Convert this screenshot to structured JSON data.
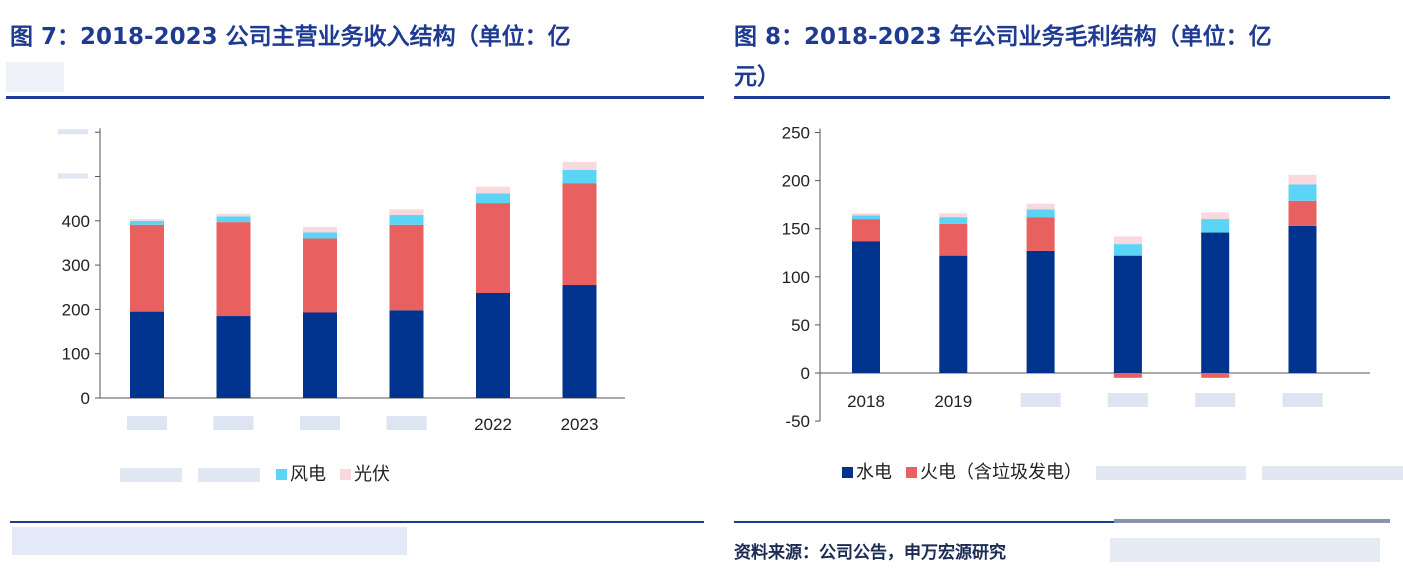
{
  "left": {
    "title": "图 7：2018-2023 公司主营业务收入结构（单位：亿",
    "chart_data": {
      "type": "bar",
      "stacked": true,
      "categories": [
        "",
        "",
        "",
        "",
        "2022",
        "2023"
      ],
      "ylim": [
        0,
        600
      ],
      "yticks": [
        0,
        100,
        200,
        300,
        400
      ],
      "series": [
        {
          "name": "",
          "color": "#00338d",
          "values": [
            195,
            185,
            193,
            198,
            237,
            255
          ]
        },
        {
          "name": "",
          "color": "#e8605f",
          "values": [
            196,
            212,
            167,
            193,
            203,
            230
          ]
        },
        {
          "name": "风电",
          "color": "#5bd4f5",
          "values": [
            9,
            13,
            14,
            22,
            22,
            30
          ]
        },
        {
          "name": "光伏",
          "color": "#f9d9de",
          "values": [
            4,
            6,
            12,
            13,
            15,
            18
          ]
        }
      ],
      "legend_position": "bottom"
    }
  },
  "right": {
    "title_line1": "图 8：2018-2023 年公司业务毛利结构（单位：亿",
    "title_line2": "元）",
    "chart_data": {
      "type": "bar",
      "stacked": true,
      "categories": [
        "2018",
        "2019",
        "",
        "",
        "",
        ""
      ],
      "ylim": [
        -50,
        250
      ],
      "yticks": [
        -50,
        0,
        50,
        100,
        150,
        200,
        250
      ],
      "series": [
        {
          "name": "水电",
          "color": "#00338d",
          "values": [
            137,
            122,
            127,
            122,
            146,
            153
          ]
        },
        {
          "name": "火电（含垃圾发电）",
          "color": "#e8605f",
          "values": [
            23,
            33,
            35,
            -5,
            -5,
            26
          ]
        },
        {
          "name": "",
          "color": "#5bd4f5",
          "values": [
            4,
            7,
            8,
            12,
            14,
            17
          ]
        },
        {
          "name": "",
          "color": "#f9d9de",
          "values": [
            2,
            4,
            6,
            8,
            7,
            10
          ]
        }
      ],
      "legend_position": "bottom"
    },
    "source": "资料来源：公司公告，申万宏源研究"
  }
}
